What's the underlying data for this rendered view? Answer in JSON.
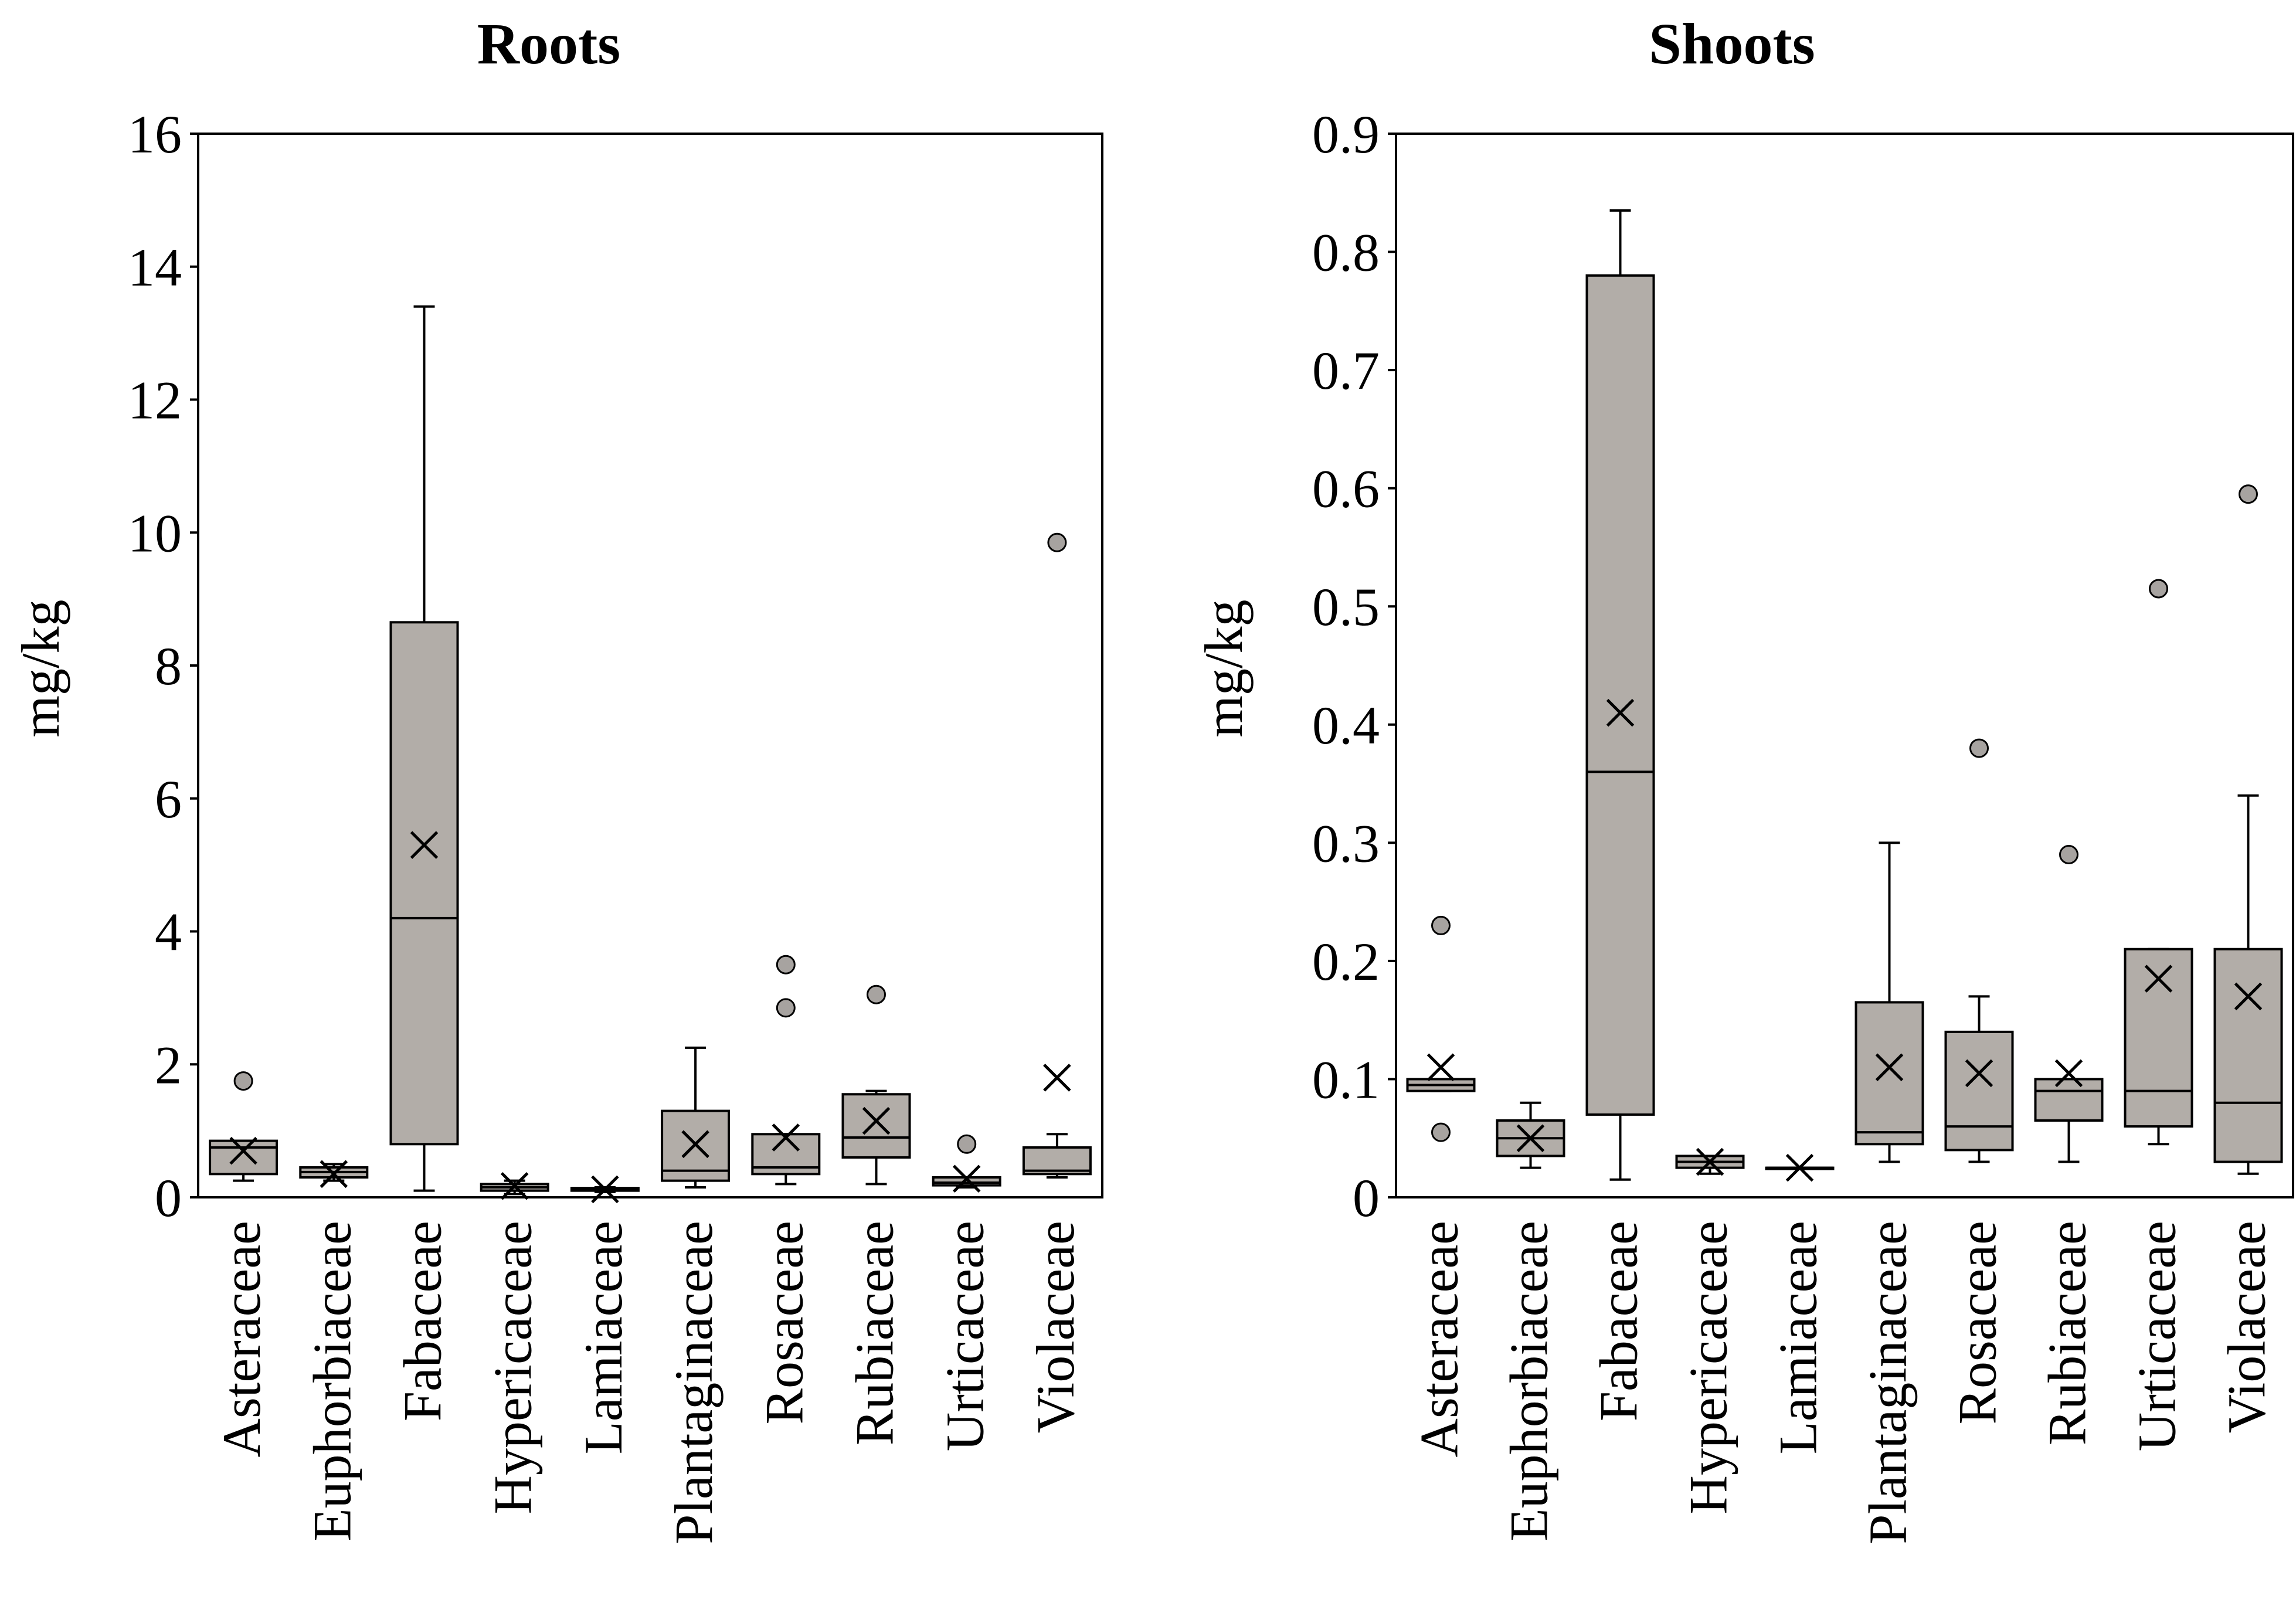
{
  "chart_data": [
    {
      "type": "box",
      "title": "Roots",
      "ylabel": "mg/kg",
      "xlabel": "",
      "ylim": [
        0,
        16
      ],
      "yticks": [
        0,
        2,
        4,
        6,
        8,
        10,
        12,
        14,
        16
      ],
      "grid": false,
      "categories": [
        "Asteraceae",
        "Euphorbiaceae",
        "Fabaceae",
        "Hypericaceae",
        "Lamiaceae",
        "Plantaginaceae",
        "Rosaceae",
        "Rubiaceae",
        "Urticaceae",
        "Violaceae"
      ],
      "boxes": [
        {
          "min": 0.25,
          "q1": 0.35,
          "median": 0.75,
          "q3": 0.85,
          "max": 0.85,
          "mean": 0.7,
          "outliers": [
            1.75
          ]
        },
        {
          "min": 0.25,
          "q1": 0.3,
          "median": 0.38,
          "q3": 0.45,
          "max": 0.5,
          "mean": 0.35,
          "outliers": []
        },
        {
          "min": 0.1,
          "q1": 0.8,
          "median": 4.2,
          "q3": 8.65,
          "max": 13.4,
          "mean": 5.3,
          "outliers": []
        },
        {
          "min": 0.05,
          "q1": 0.1,
          "median": 0.15,
          "q3": 0.2,
          "max": 0.25,
          "mean": 0.17,
          "outliers": []
        },
        {
          "min": 0.08,
          "q1": 0.1,
          "median": 0.12,
          "q3": 0.14,
          "max": 0.15,
          "mean": 0.12,
          "outliers": []
        },
        {
          "min": 0.15,
          "q1": 0.25,
          "median": 0.4,
          "q3": 1.3,
          "max": 2.25,
          "mean": 0.8,
          "outliers": []
        },
        {
          "min": 0.2,
          "q1": 0.35,
          "median": 0.45,
          "q3": 0.95,
          "max": 0.95,
          "mean": 0.9,
          "outliers": [
            2.85,
            3.5
          ]
        },
        {
          "min": 0.2,
          "q1": 0.6,
          "median": 0.9,
          "q3": 1.55,
          "max": 1.6,
          "mean": 1.15,
          "outliers": [
            3.05
          ]
        },
        {
          "min": 0.15,
          "q1": 0.18,
          "median": 0.22,
          "q3": 0.3,
          "max": 0.3,
          "mean": 0.28,
          "outliers": [
            0.8
          ]
        },
        {
          "min": 0.3,
          "q1": 0.35,
          "median": 0.4,
          "q3": 0.75,
          "max": 0.95,
          "mean": 1.8,
          "outliers": [
            9.85
          ]
        }
      ]
    },
    {
      "type": "box",
      "title": "Shoots",
      "ylabel": "mg/kg",
      "xlabel": "",
      "ylim": [
        0,
        0.9
      ],
      "yticks": [
        0,
        0.1,
        0.2,
        0.3,
        0.4,
        0.5,
        0.6,
        0.7,
        0.8,
        0.9
      ],
      "grid": false,
      "categories": [
        "Asteraceae",
        "Euphorbiaceae",
        "Fabaceae",
        "Hypericaceae",
        "Lamiaceae",
        "Plantaginaceae",
        "Rosaceae",
        "Rubiaceae",
        "Urticaceae",
        "Violaceae"
      ],
      "boxes": [
        {
          "min": 0.09,
          "q1": 0.09,
          "median": 0.095,
          "q3": 0.1,
          "max": 0.1,
          "mean": 0.11,
          "outliers": [
            0.23,
            0.055
          ]
        },
        {
          "min": 0.025,
          "q1": 0.035,
          "median": 0.05,
          "q3": 0.065,
          "max": 0.08,
          "mean": 0.05,
          "outliers": []
        },
        {
          "min": 0.015,
          "q1": 0.07,
          "median": 0.36,
          "q3": 0.78,
          "max": 0.835,
          "mean": 0.41,
          "outliers": []
        },
        {
          "min": 0.02,
          "q1": 0.025,
          "median": 0.03,
          "q3": 0.035,
          "max": 0.035,
          "mean": 0.03,
          "outliers": []
        },
        {
          "min": 0.025,
          "q1": 0.025,
          "median": 0.025,
          "q3": 0.025,
          "max": 0.025,
          "mean": 0.025,
          "outliers": []
        },
        {
          "min": 0.03,
          "q1": 0.045,
          "median": 0.055,
          "q3": 0.165,
          "max": 0.3,
          "mean": 0.11,
          "outliers": []
        },
        {
          "min": 0.03,
          "q1": 0.04,
          "median": 0.06,
          "q3": 0.14,
          "max": 0.17,
          "mean": 0.105,
          "outliers": [
            0.38
          ]
        },
        {
          "min": 0.03,
          "q1": 0.065,
          "median": 0.09,
          "q3": 0.1,
          "max": 0.1,
          "mean": 0.105,
          "outliers": [
            0.29
          ]
        },
        {
          "min": 0.045,
          "q1": 0.06,
          "median": 0.09,
          "q3": 0.21,
          "max": 0.21,
          "mean": 0.185,
          "outliers": [
            0.515
          ]
        },
        {
          "min": 0.02,
          "q1": 0.03,
          "median": 0.08,
          "q3": 0.21,
          "max": 0.34,
          "mean": 0.17,
          "outliers": [
            0.595
          ]
        }
      ]
    }
  ],
  "colors": {
    "box_fill": "#b2ada8",
    "outlier_fill": "#a7a3a0",
    "stroke": "#000000"
  }
}
